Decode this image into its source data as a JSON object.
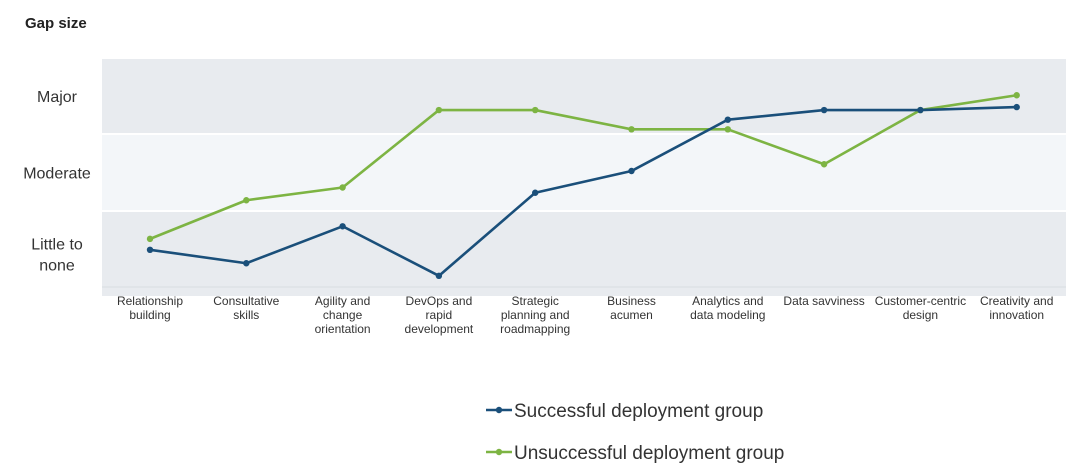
{
  "chart_data": {
    "type": "line",
    "ylabel": "Gap size",
    "bands": [
      {
        "label_lines": [
          "Major"
        ],
        "range": [
          2,
          3
        ],
        "color": "#e8ebef"
      },
      {
        "label_lines": [
          "Moderate"
        ],
        "range": [
          1,
          2
        ],
        "color": "#f3f6f9"
      },
      {
        "label_lines": [
          "Little to",
          "none"
        ],
        "range": [
          0,
          1
        ],
        "color": "#e8ebef"
      }
    ],
    "ylim": [
      0,
      3
    ],
    "categories": [
      [
        "Relationship",
        "building"
      ],
      [
        "Consultative",
        "skills"
      ],
      [
        "Agility and",
        "change",
        "orientation"
      ],
      [
        "DevOps and",
        "rapid",
        "development"
      ],
      [
        "Strategic",
        "planning and",
        "roadmapping"
      ],
      [
        "Business",
        "acumen"
      ],
      [
        "Analytics and",
        "data modeling"
      ],
      [
        "Data savviness"
      ],
      [
        "Customer-centric",
        "design"
      ],
      [
        "Creativity and",
        "innovation"
      ]
    ],
    "series": [
      {
        "name": "Successful deployment group",
        "color": "#1a4f7a",
        "values": [
          0.55,
          0.39,
          0.83,
          0.24,
          1.23,
          1.52,
          2.18,
          2.31,
          2.31,
          2.35
        ]
      },
      {
        "name": "Unsuccessful deployment group",
        "color": "#7db443",
        "values": [
          0.68,
          1.13,
          1.3,
          2.31,
          2.31,
          2.05,
          2.05,
          1.61,
          2.31,
          2.51
        ]
      }
    ],
    "legend": "bottom"
  }
}
